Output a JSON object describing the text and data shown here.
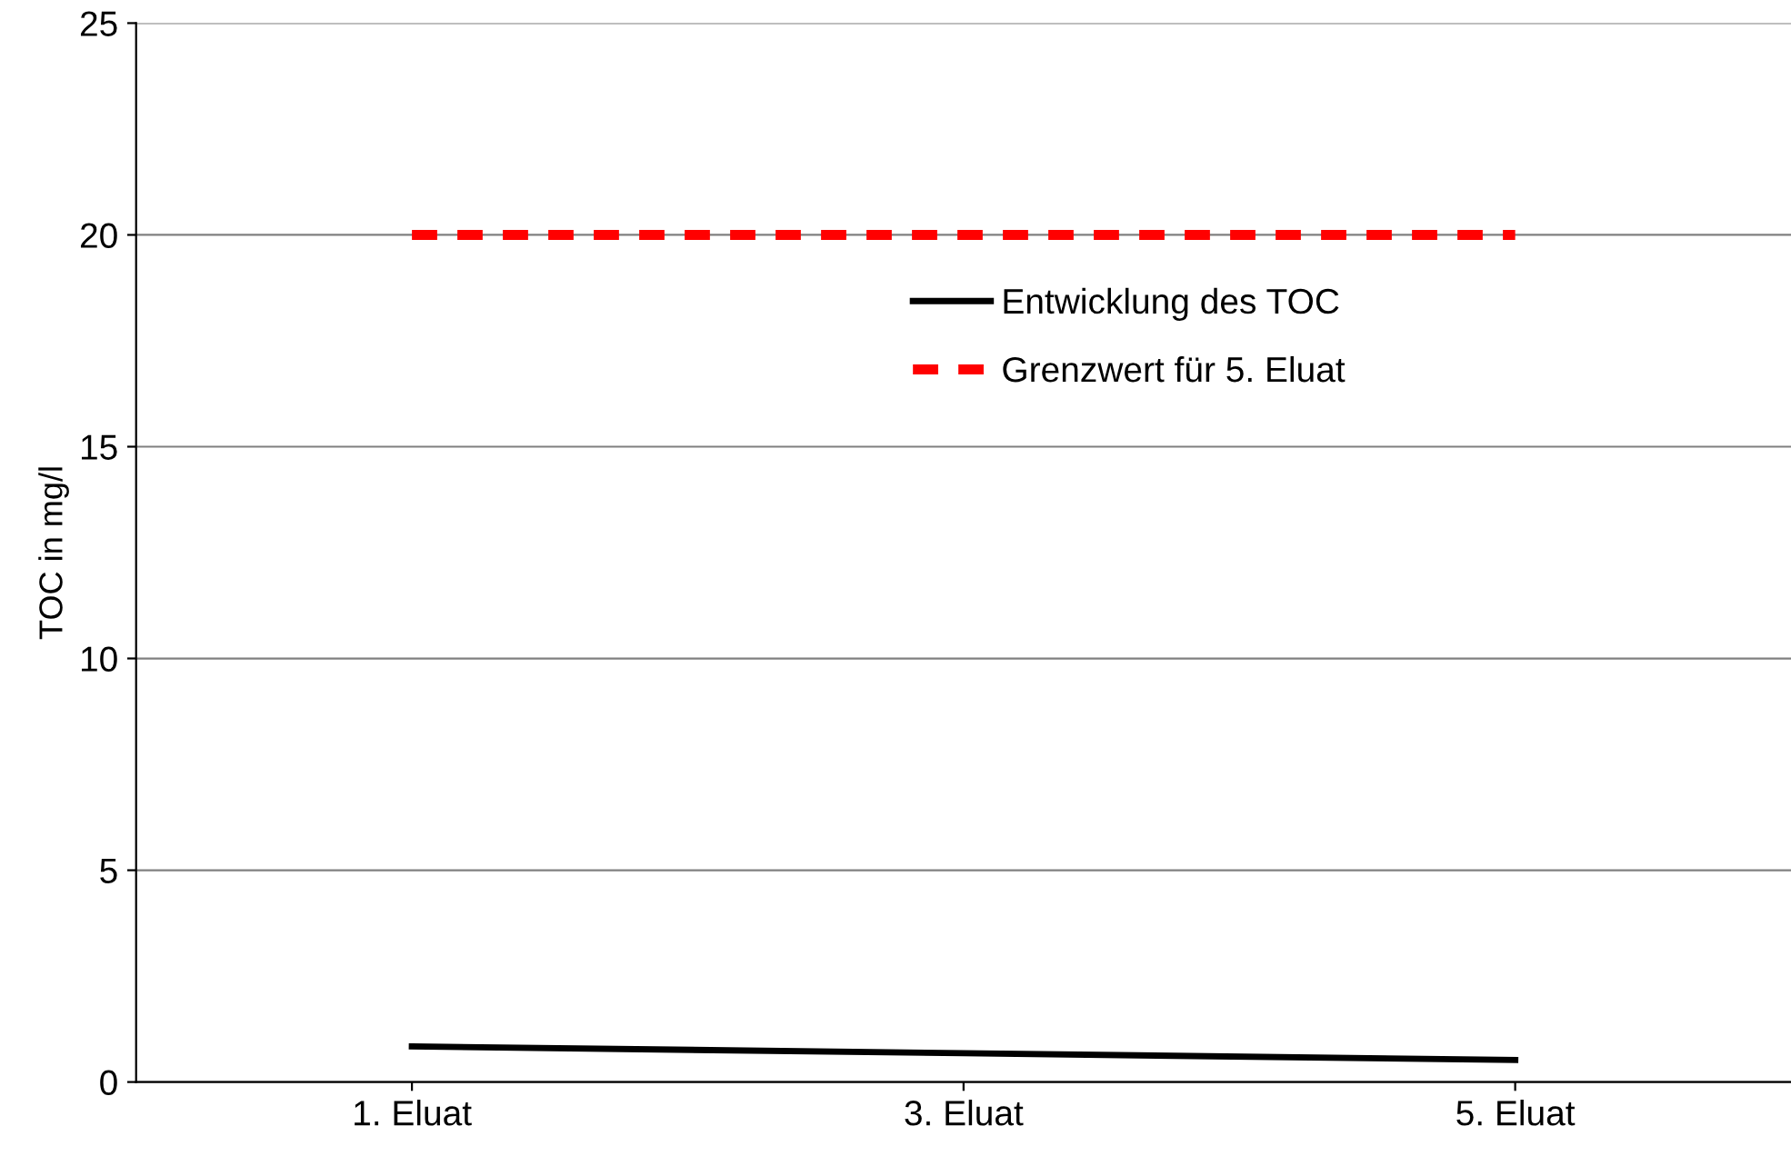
{
  "chart_data": {
    "type": "line",
    "ylabel": "TOC in mg/l",
    "categories": [
      "1. Eluat",
      "3. Eluat",
      "5. Eluat"
    ],
    "series": [
      {
        "name": "Entwicklung des TOC",
        "color": "#000000",
        "values": [
          0.84,
          0.68,
          0.52
        ],
        "line_style": "solid"
      },
      {
        "name": "Grenzwert für 5. Eluat",
        "color": "#ff0000",
        "values": [
          20,
          20,
          20
        ],
        "line_style": "dashed"
      }
    ],
    "ylim": [
      0,
      25
    ],
    "yticks": [
      0,
      5,
      10,
      15,
      20,
      25
    ],
    "grid": "y",
    "legend": "top",
    "marker": "none"
  }
}
